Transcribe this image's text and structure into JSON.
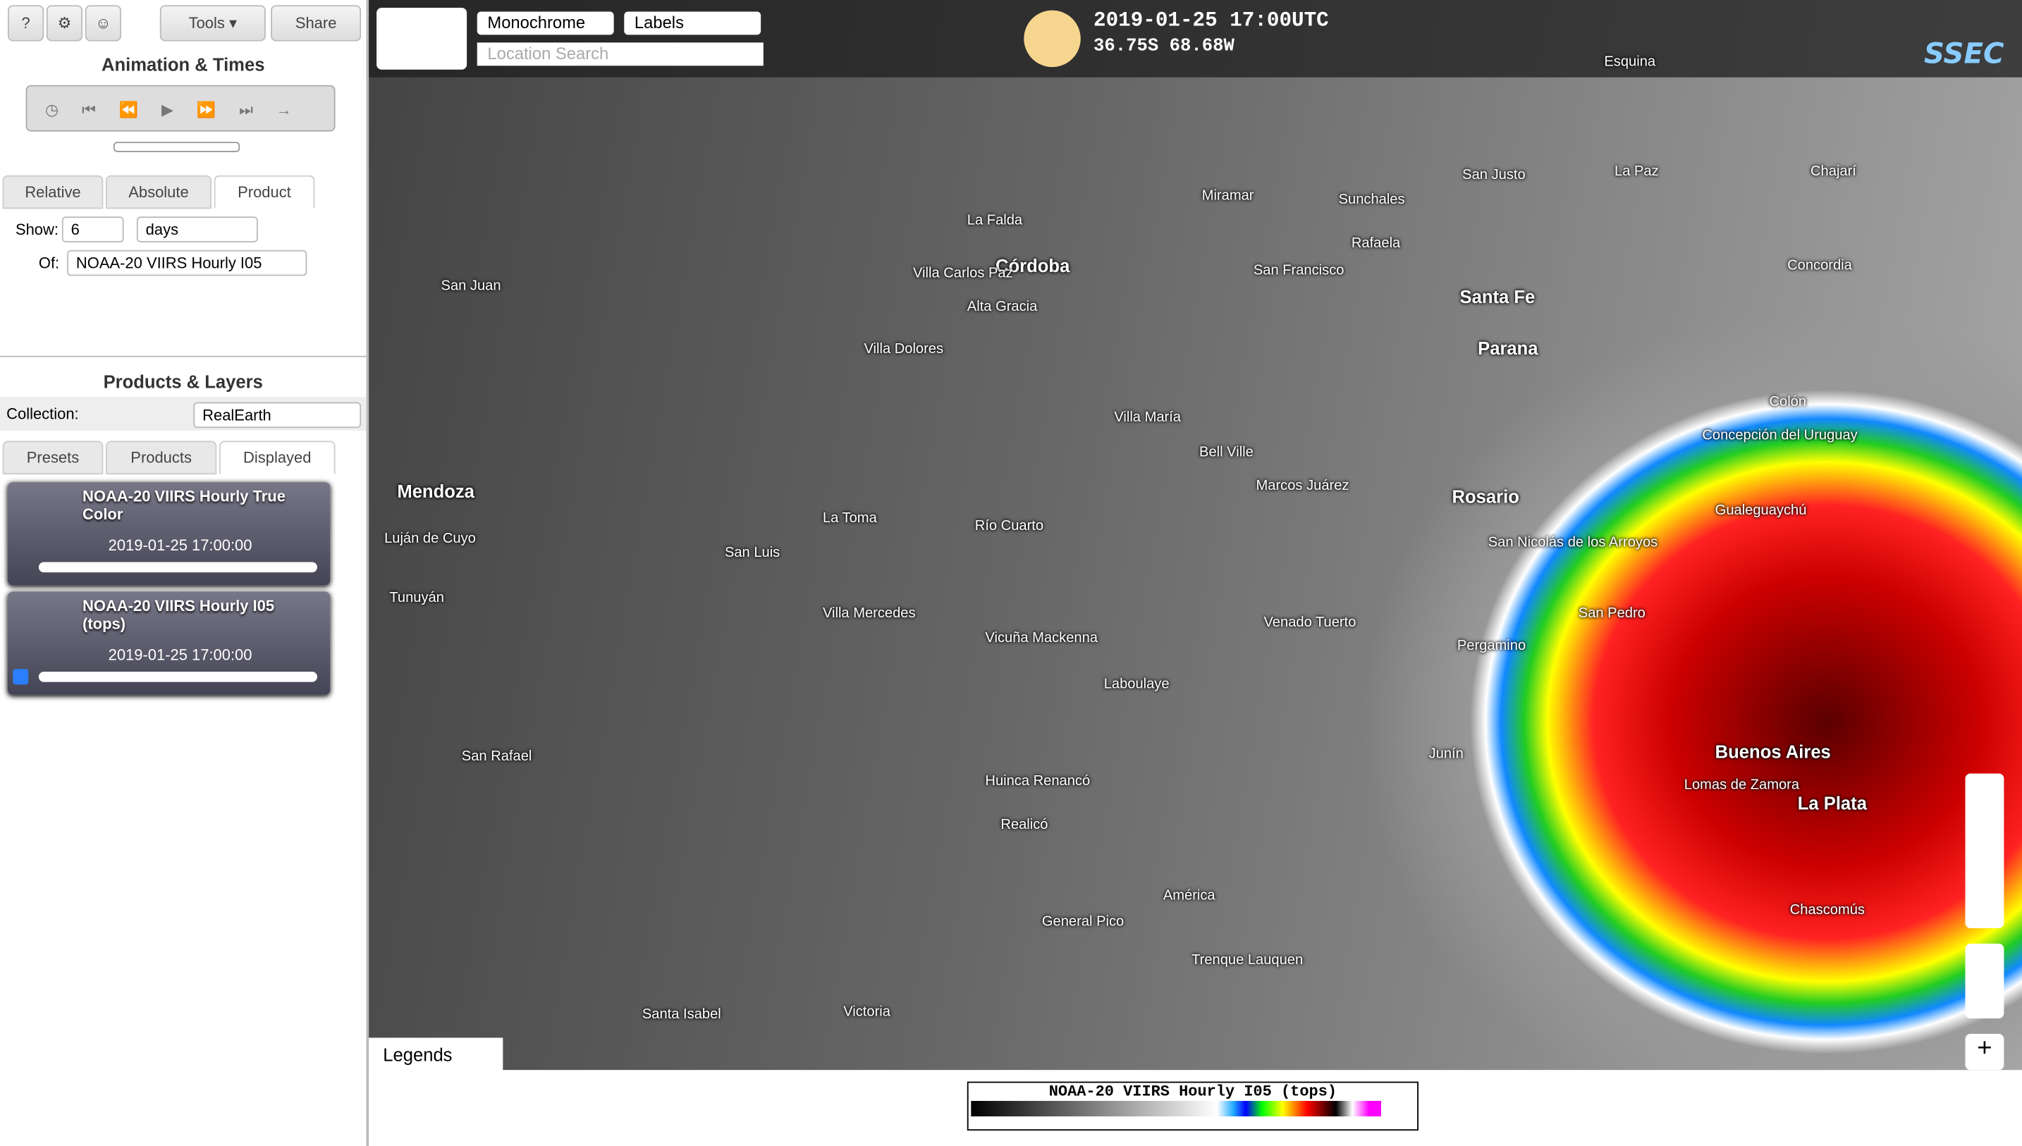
{
  "toolbar": {
    "help": "?",
    "tools": "Tools",
    "share": "Share"
  },
  "animation": {
    "title": "Animation & Times",
    "tabs": [
      "Relative",
      "Absolute",
      "Product"
    ],
    "show_label": "Show:",
    "show_value": "6",
    "unit": "days",
    "of_label": "Of:",
    "of_value": "NOAA-20 VIIRS Hourly I05"
  },
  "layers": {
    "title": "Products & Layers",
    "collection_label": "Collection:",
    "collection": "RealEarth",
    "tabs": [
      "Presets",
      "Products",
      "Displayed"
    ],
    "items": [
      {
        "name": "NOAA-20 VIIRS Hourly True Color",
        "time": "2019-01-25 17:00:00"
      },
      {
        "name": "NOAA-20 VIIRS Hourly I05 (tops)",
        "time": "2019-01-25 17:00:00"
      }
    ]
  },
  "map": {
    "style": "Monochrome",
    "overlay": "Labels",
    "search_placeholder": "Location Search",
    "datetime": "2019-01-25 17:00UTC",
    "coords": "36.75S 68.68W",
    "logo": "SSEC",
    "labels": [
      "San Juan",
      "Córdoba",
      "La Falda",
      "Villa Carlos Paz",
      "Alta Gracia",
      "Villa Dolores",
      "Miramar",
      "Sunchales",
      "San Justo",
      "La Paz",
      "Rafaela",
      "San Francisco",
      "Santa Fe",
      "Parana",
      "Concordia",
      "Chajarí",
      "Esquina",
      "Colón",
      "Concepción del Uruguay",
      "Gualeguaychú",
      "Villa María",
      "Bell Ville",
      "Marcos Juárez",
      "Rosario",
      "San Nicolás de los Arroyos",
      "San Pedro",
      "Venado Tuerto",
      "Pergamino",
      "Junín",
      "Buenos Aires",
      "Lomas de Zamora",
      "La Plata",
      "Chascomús",
      "Mendoza",
      "Luján de Cuyo",
      "Tunuyán",
      "San Luis",
      "La Toma",
      "Río Cuarto",
      "Villa Mercedes",
      "Vicuña Mackenna",
      "Laboulaye",
      "Huinca Renancó",
      "Realicó",
      "San Rafael",
      "General Pico",
      "América",
      "Trenque Lauquen",
      "Santa Isabel",
      "Victoria"
    ]
  },
  "legend": {
    "tab": "Legends",
    "title": "NOAA-20 VIIRS Hourly I05 (tops)"
  }
}
